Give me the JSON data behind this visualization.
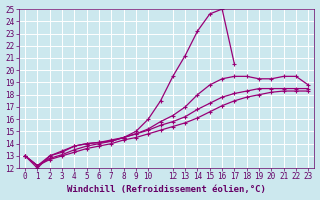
{
  "xlabel": "Windchill (Refroidissement éolien,°C)",
  "bg_color": "#cce8ee",
  "line_color": "#990077",
  "xlim": [
    -0.5,
    23.5
  ],
  "ylim": [
    12,
    25
  ],
  "xticks": [
    0,
    1,
    2,
    3,
    4,
    5,
    6,
    7,
    8,
    9,
    10,
    12,
    13,
    14,
    15,
    16,
    17,
    18,
    19,
    20,
    21,
    22,
    23
  ],
  "yticks": [
    12,
    13,
    14,
    15,
    16,
    17,
    18,
    19,
    20,
    21,
    22,
    23,
    24,
    25
  ],
  "lines": [
    {
      "x": [
        0,
        1,
        2,
        3,
        4,
        5,
        6,
        7,
        8,
        9,
        10,
        11,
        12,
        13,
        14,
        15,
        16,
        17
      ],
      "y": [
        13.0,
        12.0,
        13.0,
        13.3,
        13.8,
        14.0,
        14.1,
        14.2,
        14.5,
        15.0,
        16.0,
        17.5,
        19.5,
        21.2,
        23.2,
        24.6,
        25.0,
        20.5
      ]
    },
    {
      "x": [
        0,
        1,
        2,
        3,
        4,
        5,
        6,
        7,
        8,
        9,
        10,
        11,
        12,
        13,
        14,
        15,
        16,
        17,
        18,
        19,
        20,
        21,
        22,
        23
      ],
      "y": [
        13.0,
        12.2,
        13.0,
        13.4,
        13.8,
        14.0,
        14.1,
        14.3,
        14.5,
        14.8,
        15.2,
        15.8,
        16.3,
        17.0,
        18.0,
        18.8,
        19.3,
        19.5,
        19.5,
        19.3,
        19.3,
        19.5,
        19.5,
        18.8
      ]
    },
    {
      "x": [
        0,
        1,
        2,
        3,
        4,
        5,
        6,
        7,
        8,
        9,
        10,
        11,
        12,
        13,
        14,
        15,
        16,
        17,
        18,
        19,
        20,
        21,
        22,
        23
      ],
      "y": [
        13.0,
        12.2,
        12.8,
        13.1,
        13.5,
        13.8,
        14.0,
        14.2,
        14.5,
        14.8,
        15.1,
        15.5,
        15.8,
        16.2,
        16.8,
        17.3,
        17.8,
        18.1,
        18.3,
        18.5,
        18.5,
        18.5,
        18.5,
        18.5
      ]
    },
    {
      "x": [
        0,
        1,
        2,
        3,
        4,
        5,
        6,
        7,
        8,
        9,
        10,
        11,
        12,
        13,
        14,
        15,
        16,
        17,
        18,
        19,
        20,
        21,
        22,
        23
      ],
      "y": [
        13.0,
        12.2,
        12.7,
        13.0,
        13.3,
        13.6,
        13.8,
        14.0,
        14.3,
        14.5,
        14.8,
        15.1,
        15.4,
        15.7,
        16.1,
        16.6,
        17.1,
        17.5,
        17.8,
        18.0,
        18.2,
        18.3,
        18.3,
        18.3
      ]
    }
  ],
  "marker": "+",
  "markersize": 3.5,
  "linewidth": 0.9,
  "font_color": "#660066",
  "tick_labelsize": 5.5,
  "xlabel_fontsize": 6.5
}
